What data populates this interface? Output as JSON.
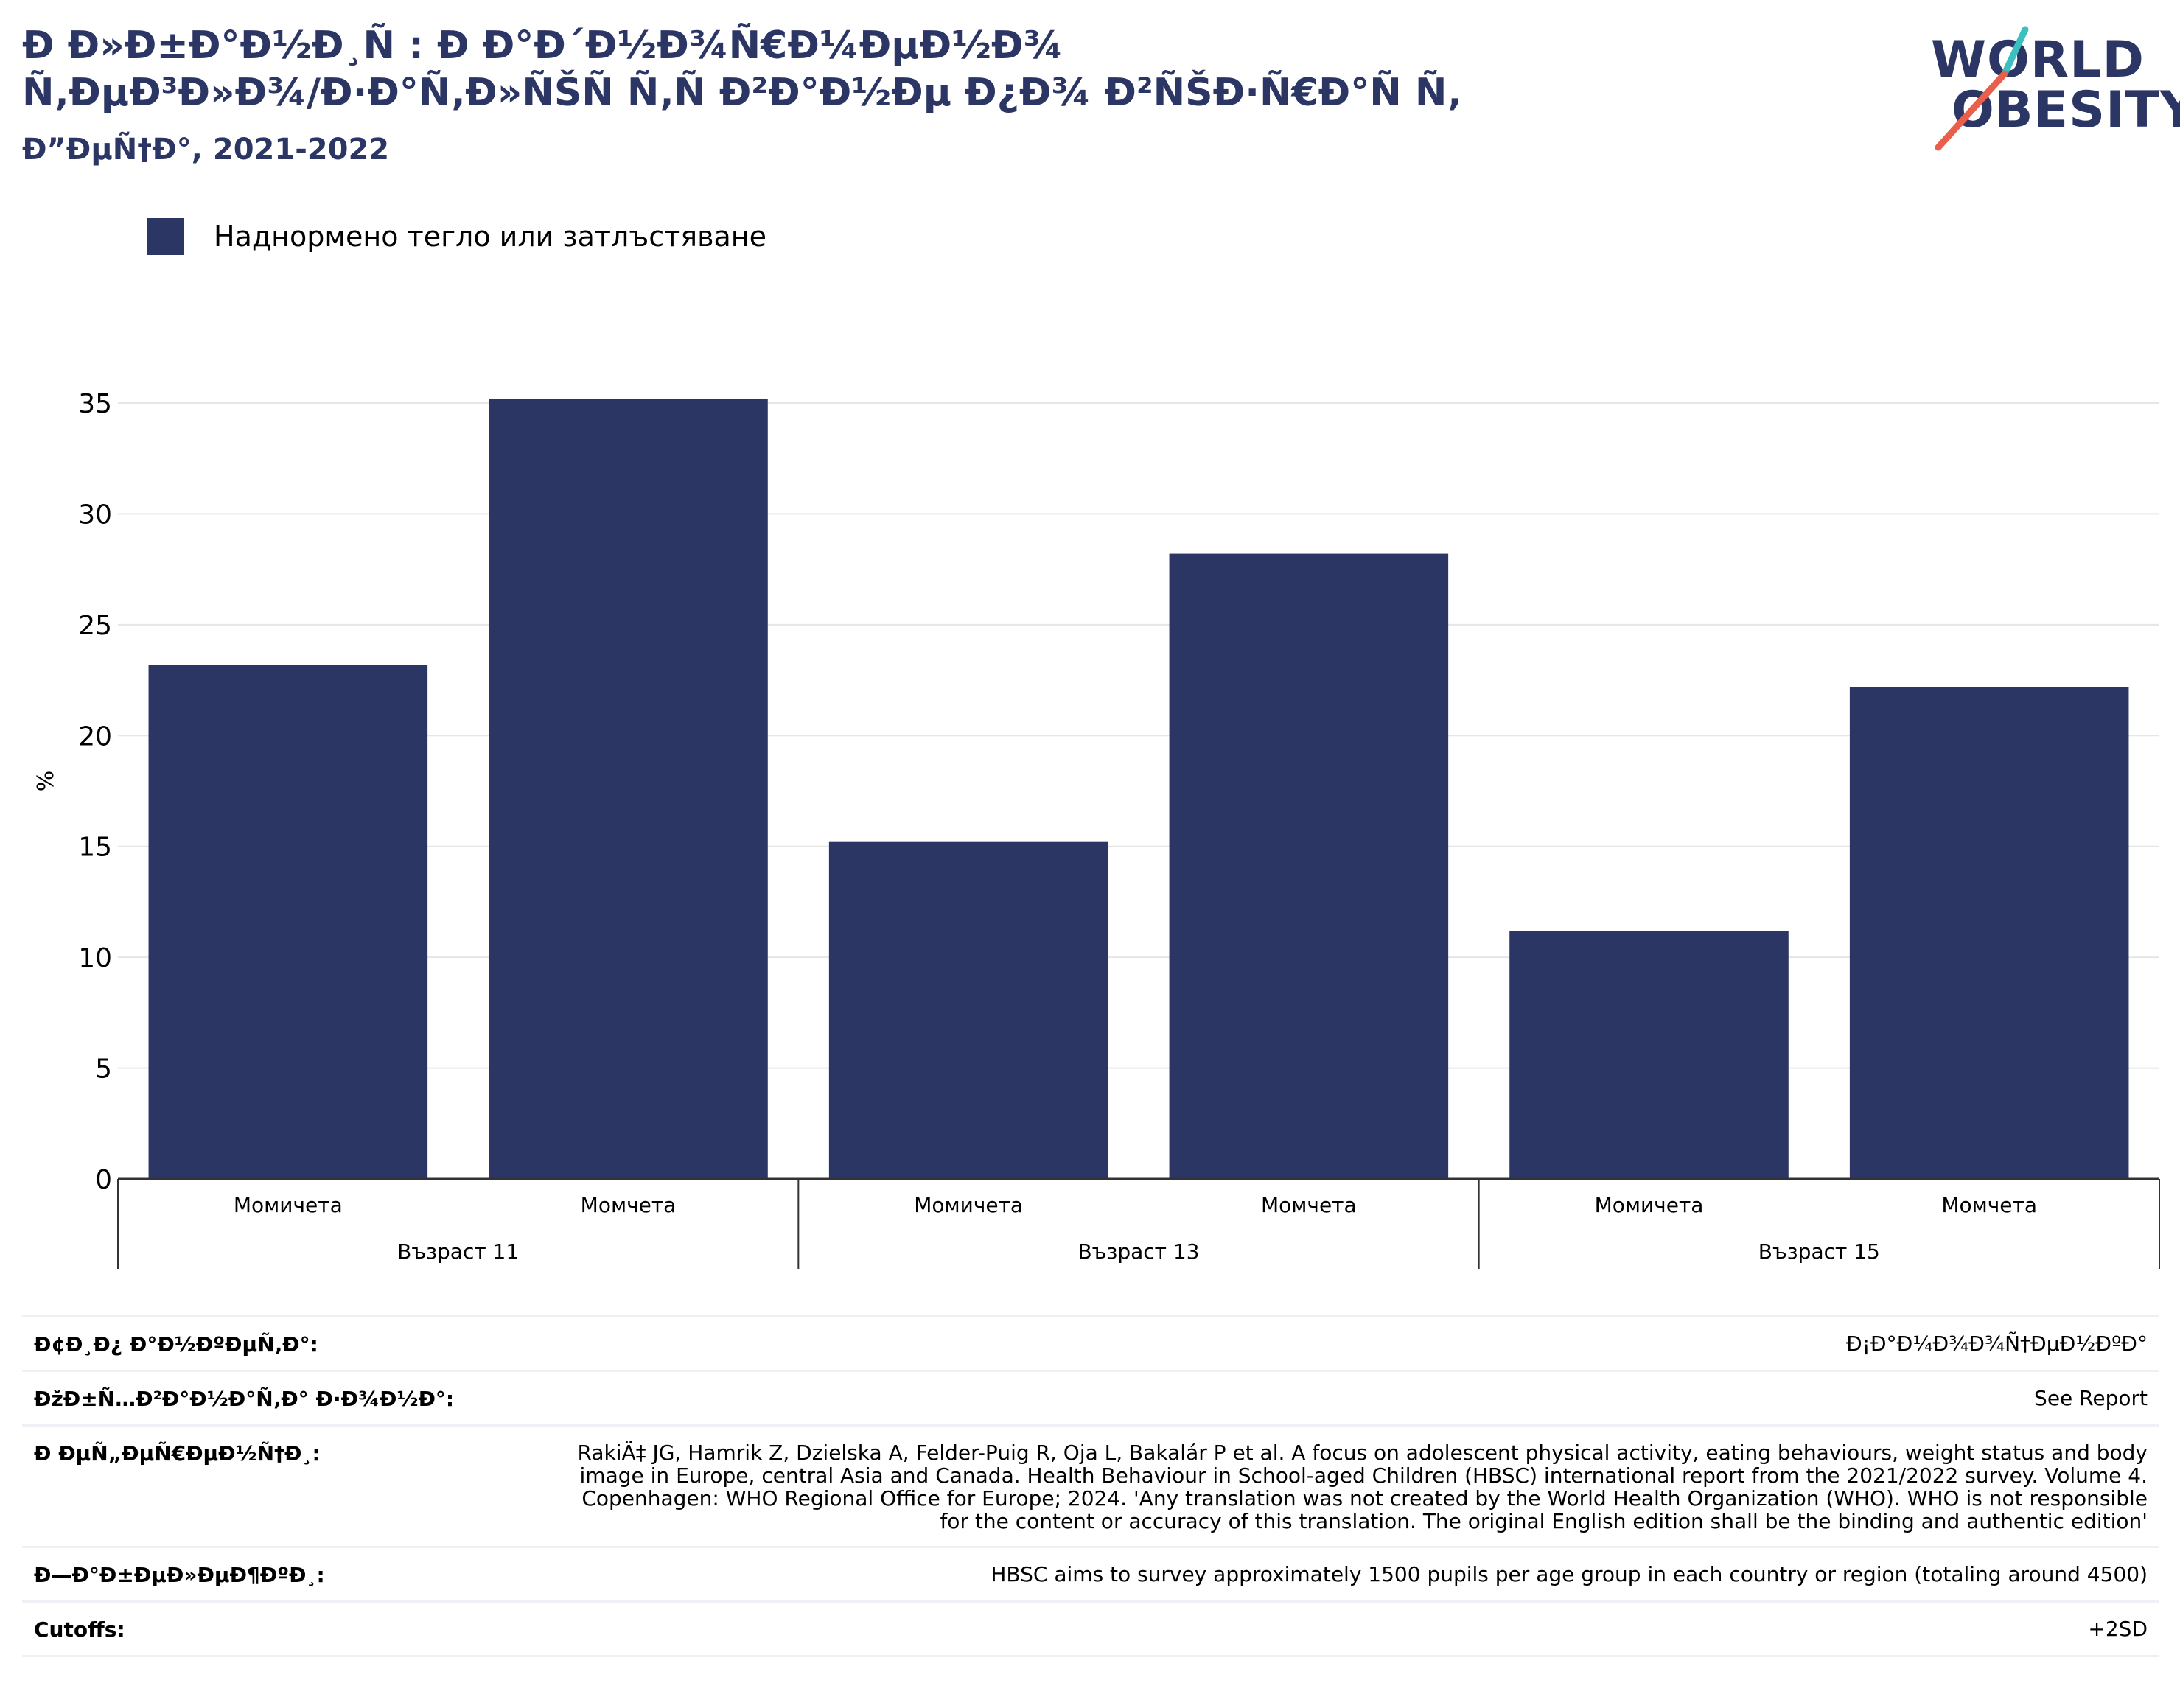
{
  "header": {
    "title_line1": "Ð Ð»Ð±Ð°Ð½Ð¸Ñ : Ð Ð°Ð´Ð½Ð¾Ñ€Ð¼ÐµÐ½Ð¾",
    "title_line2": "Ñ‚ÐµÐ³Ð»Ð¾/Ð·Ð°Ñ‚Ð»ÑŠÑ Ñ‚Ñ Ð²Ð°Ð½Ðµ Ð¿Ð¾ Ð²ÑŠÐ·Ñ€Ð°Ñ Ñ‚",
    "subtitle": "Ð”ÐµÑ†Ð°, 2021-2022"
  },
  "logo": {
    "line1": "WORLD",
    "line2": "OBESITY",
    "accent_teal": "#3bbfbf",
    "accent_red": "#e8604c"
  },
  "colors": {
    "bar": "#2b3664",
    "grid": "#e6e6e6",
    "axis": "#333333"
  },
  "chart_data": {
    "type": "bar",
    "legend": "Наднормено тегло или затлъстяване",
    "ylabel": "%",
    "ylim": [
      0,
      35
    ],
    "yticks": [
      0,
      5,
      10,
      15,
      20,
      25,
      30,
      35
    ],
    "groups": [
      {
        "label": "Възраст 11",
        "bars": [
          {
            "label": "Момичета",
            "value": 23.2
          },
          {
            "label": "Момчета",
            "value": 35.2
          }
        ]
      },
      {
        "label": "Възраст 13",
        "bars": [
          {
            "label": "Момичета",
            "value": 15.2
          },
          {
            "label": "Момчета",
            "value": 28.2
          }
        ]
      },
      {
        "label": "Възраст 15",
        "bars": [
          {
            "label": "Момичета",
            "value": 11.2
          },
          {
            "label": "Момчета",
            "value": 22.2
          }
        ]
      }
    ]
  },
  "meta": {
    "rows": [
      {
        "label": "Ð¢Ð¸Ð¿ Ð°Ð½ÐºÐµÑ‚Ð°:",
        "value": "Ð¡Ð°Ð¼Ð¾Ð¾Ñ†ÐµÐ½ÐºÐ°"
      },
      {
        "label": "ÐžÐ±Ñ…Ð²Ð°Ð½Ð°Ñ‚Ð° Ð·Ð¾Ð½Ð°:",
        "value": "See Report"
      },
      {
        "label": "Ð ÐµÑ„ÐµÑ€ÐµÐ½Ñ†Ð¸:",
        "value": "RakiÄ‡ JG, Hamrik Z, Dzielska A, Felder-Puig R, Oja L, Bakalár P et al. A focus on adolescent physical activity, eating behaviours, weight status and body image in Europe, central Asia and Canada. Health Behaviour in School-aged Children (HBSC) international report from the 2021/2022 survey. Volume 4. Copenhagen: WHO Regional Office for Europe; 2024. 'Any translation was not created by the World Health Organization (WHO). WHO is not responsible for the content or accuracy of this translation. The original English edition shall be the binding and authentic edition'"
      },
      {
        "label": "Ð—Ð°Ð±ÐµÐ»ÐµÐ¶ÐºÐ¸:",
        "value": "HBSC aims to survey approximately 1500 pupils per age group in each country or region (totaling around 4500)"
      },
      {
        "label": "Cutoffs:",
        "value": "+2SD"
      }
    ]
  }
}
